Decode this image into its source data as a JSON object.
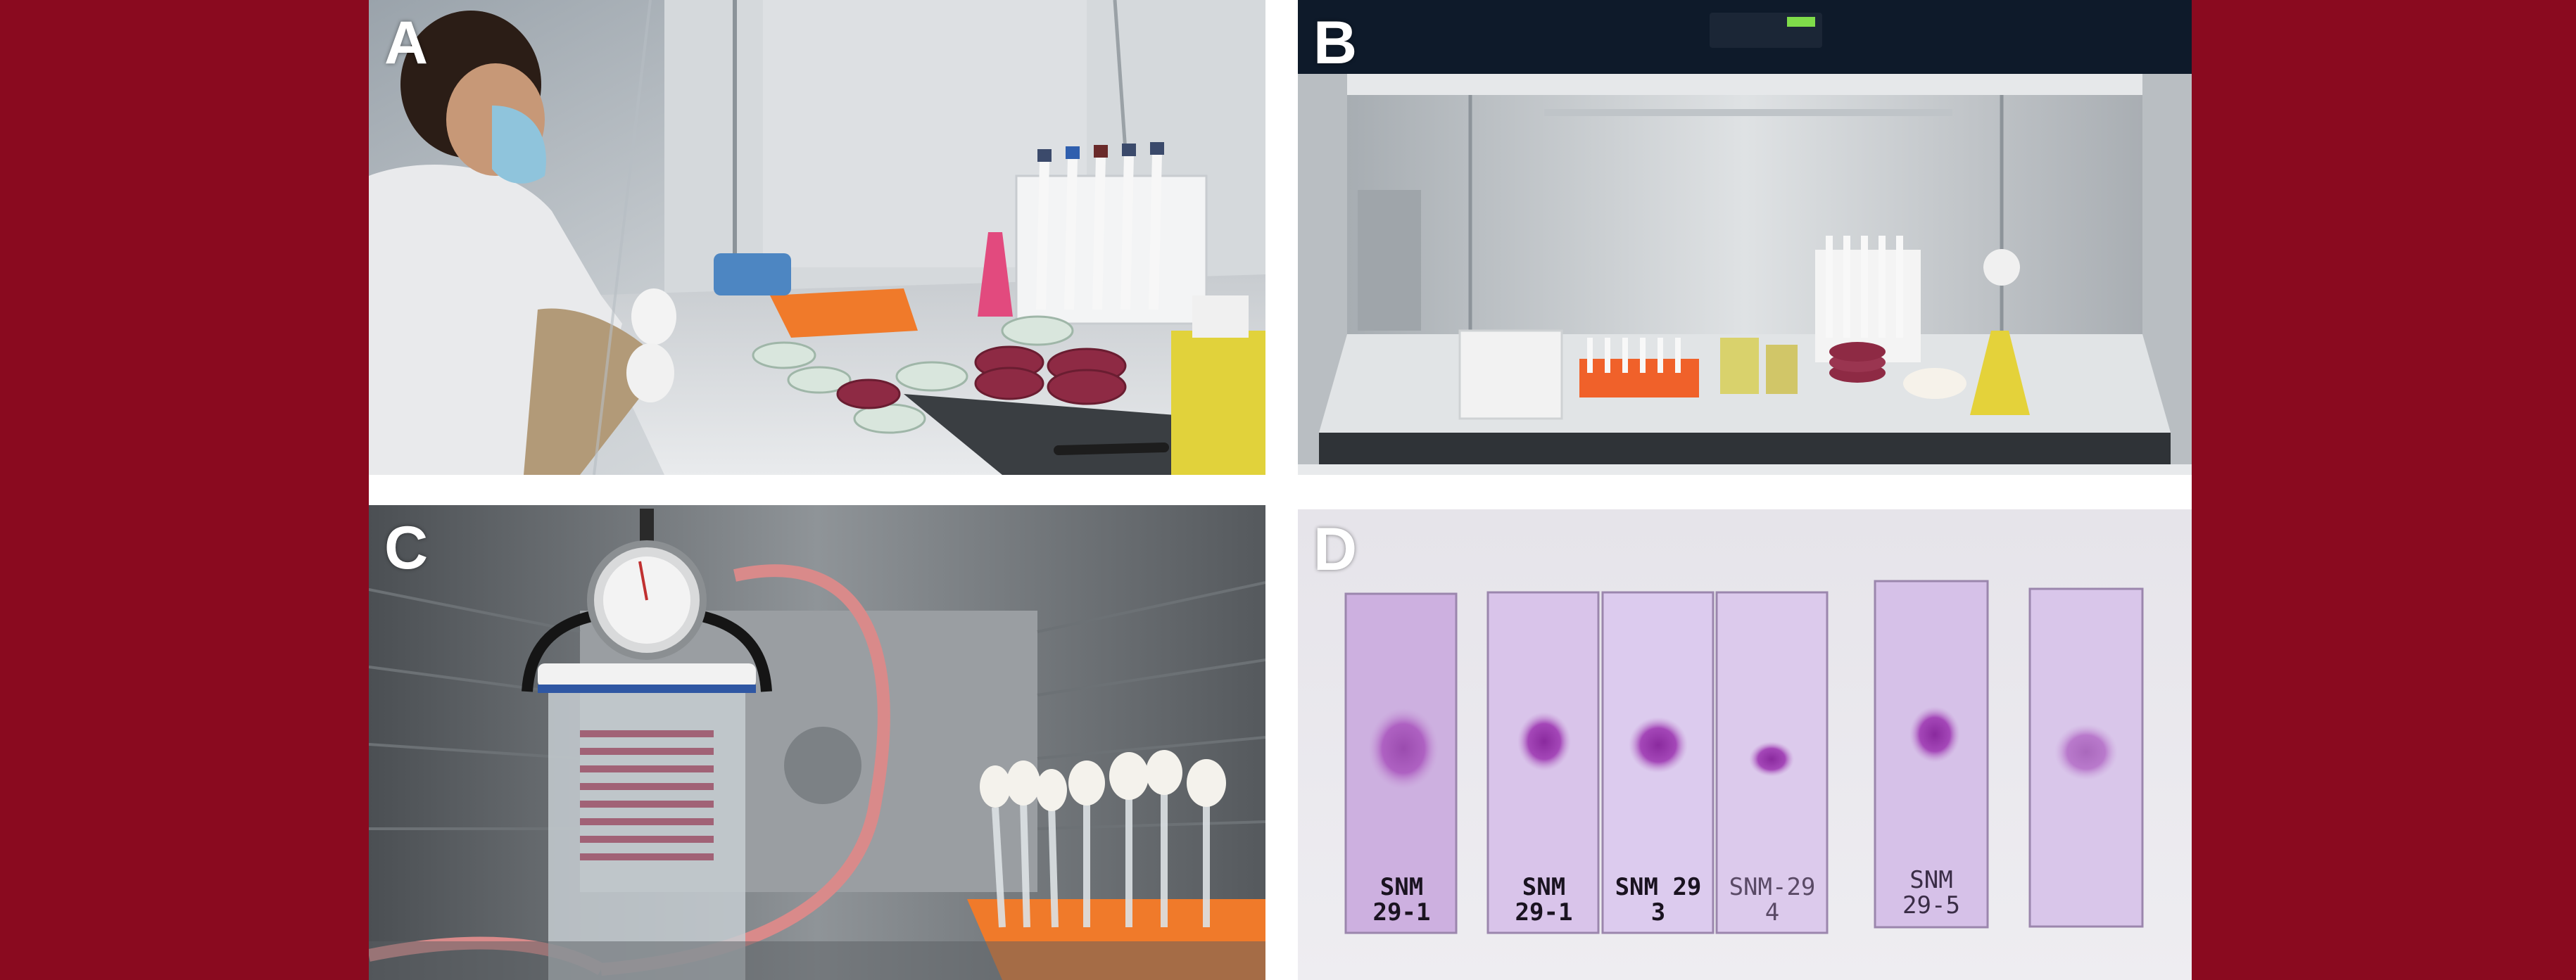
{
  "panels": {
    "a": {
      "label": "A"
    },
    "b": {
      "label": "B"
    },
    "c": {
      "label": "C"
    },
    "d": {
      "label": "D",
      "slides": [
        {
          "line1": "SNM",
          "line2": "29-1"
        },
        {
          "line1": "SNM",
          "line2": "29-1"
        },
        {
          "line1": "SNM 29",
          "line2": "3"
        },
        {
          "line1": "SNM-29",
          "line2": "4"
        },
        {
          "line1": "SNM",
          "line2": "29-5"
        },
        {
          "line1": "",
          "line2": ""
        }
      ]
    }
  },
  "colors": {
    "page_background": "#8a0a1f",
    "figure_background": "#ffffff",
    "label": "#ffffff",
    "slide_stain": "#9b3fb0"
  }
}
